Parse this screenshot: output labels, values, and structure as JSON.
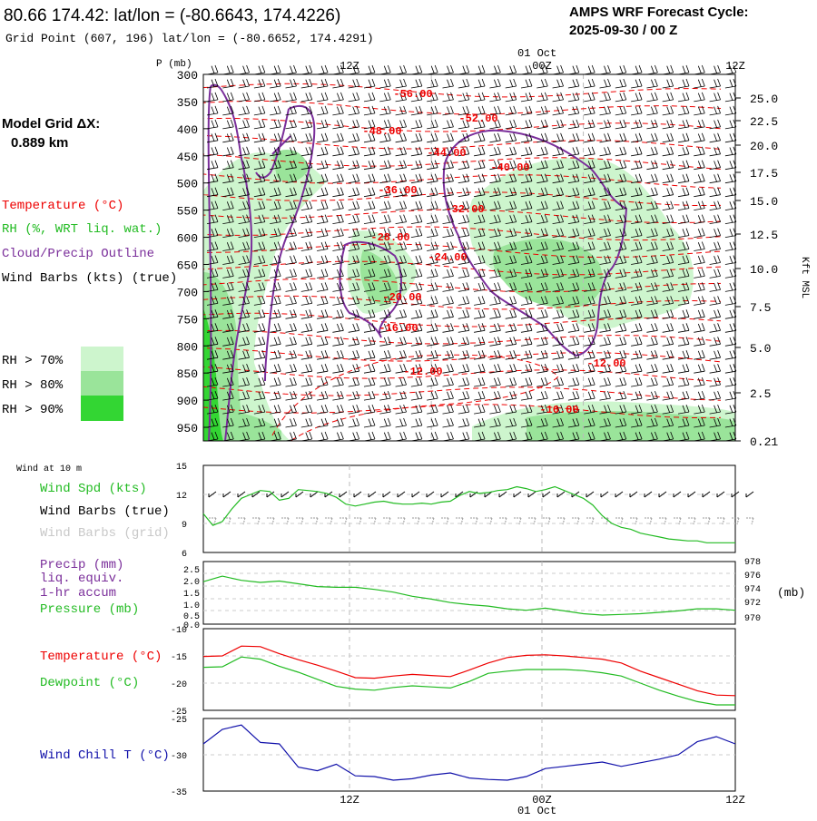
{
  "header": {
    "title": "80.66 174.42:  lat/lon = (-80.6643, 174.4226)",
    "subtitle": "Grid Point (607, 196) lat/lon = (-80.6652, 174.4291)",
    "cycle_label": "AMPS WRF Forecast Cycle:",
    "cycle_value": "2025-09-30 / 00  Z"
  },
  "model_grid": {
    "label": "Model Grid ΔX:",
    "value": "0.889 km"
  },
  "legend": {
    "temperature": "Temperature (°C)",
    "rh": "RH (%, WRT liq. wat.)",
    "cloud": "Cloud/Precip Outline",
    "wind_barbs": "Wind Barbs (kts) (true)",
    "rh70": "RH > 70%",
    "rh80": "RH > 80%",
    "rh90": "RH > 90%"
  },
  "colors": {
    "red": "#ee0000",
    "green": "#22bb22",
    "purple": "#7a2e9a",
    "blue": "#1111aa",
    "rh70": "#cdf5cd",
    "rh80": "#9ae49a",
    "rh90": "#33d633"
  },
  "time_axis": {
    "ticks": [
      "12Z",
      "00Z",
      "12Z"
    ],
    "date_label": "01 Oct"
  },
  "chart_data": [
    {
      "type": "heatmap",
      "name": "time-height cross section",
      "ylabel": "P (mb)",
      "y2label": "Kft MSL",
      "y_ticks": [
        300,
        350,
        400,
        450,
        500,
        550,
        600,
        650,
        700,
        750,
        800,
        850,
        900,
        950
      ],
      "y2_ticks": [
        "25.0",
        "22.5",
        "20.0",
        "17.5",
        "15.0",
        "12.5",
        "10.0",
        "7.5",
        "5.0",
        "2.5",
        "0.21"
      ],
      "temperature_contour_labels": [
        "-56.00",
        "-52.00",
        "-48.00",
        "-44.00",
        "-40.00",
        "-36.00",
        "-32.00",
        "-28.00",
        "-24.00",
        "-20.00",
        "-16.00",
        "-12.00",
        "-12.00",
        "-16.00"
      ],
      "grid": true
    },
    {
      "type": "line",
      "name": "wind at 10 m",
      "label": "Wind at 10 m",
      "legend": [
        "Wind Spd (kts)",
        "Wind Barbs (true)",
        "Wind Barbs (grid)"
      ],
      "y_ticks": [
        15,
        12,
        9,
        6
      ],
      "ylim": [
        6,
        15
      ],
      "x": [
        0,
        3,
        6,
        9,
        12,
        15,
        18,
        21,
        24,
        27,
        30,
        33,
        36,
        39,
        42,
        45,
        48,
        51,
        54,
        57,
        60,
        63,
        66,
        69,
        72,
        75,
        78,
        81,
        84,
        87,
        90,
        93,
        96,
        99,
        102,
        105,
        108,
        111,
        114,
        117,
        120,
        123,
        126,
        129,
        132,
        135,
        138,
        141,
        144,
        147,
        150,
        153,
        156,
        159,
        162,
        165,
        168
      ],
      "series": [
        {
          "values": [
            10.0,
            8.8,
            9.2,
            10.5,
            11.6,
            12.0,
            12.4,
            12.3,
            11.4,
            11.6,
            12.5,
            12.4,
            12.3,
            12.1,
            11.7,
            11.0,
            10.8,
            11.0,
            11.2,
            11.3,
            11.1,
            11.0,
            11.0,
            11.1,
            11.0,
            11.2,
            11.3,
            11.9,
            12.3,
            12.1,
            12.2,
            12.4,
            12.5,
            12.8,
            12.6,
            12.3,
            12.5,
            12.8,
            12.4,
            12.0,
            11.6,
            10.9,
            9.8,
            9.0,
            8.6,
            8.4,
            8.0,
            7.8,
            7.6,
            7.4,
            7.3,
            7.2,
            7.2,
            7.0,
            7.0,
            7.0,
            7.0
          ]
        }
      ]
    },
    {
      "type": "line",
      "name": "precip and pressure",
      "legend": [
        "Precip (mm)",
        "liq. equiv.",
        "1-hr accum",
        "Pressure (mb)"
      ],
      "y_ticks": [
        "2.5",
        "2.0",
        "1.5",
        "1.0",
        "0.5",
        "0.0"
      ],
      "y2_ticks": [
        "978",
        "976",
        "974",
        "972",
        "970"
      ],
      "y2label": "(mb)",
      "y2lim": [
        970,
        979
      ],
      "x": [
        0,
        6,
        12,
        18,
        24,
        30,
        36,
        42,
        48,
        54,
        60,
        66,
        72,
        78,
        84,
        90,
        96,
        102,
        108,
        114,
        120,
        126,
        132,
        138,
        144,
        150,
        156,
        162,
        168
      ],
      "series": [
        {
          "name": "Pressure (mb)",
          "values": [
            976.1,
            976.9,
            976.3,
            976.0,
            976.2,
            975.8,
            975.4,
            975.3,
            975.3,
            975.0,
            974.6,
            974.0,
            973.6,
            973.1,
            972.8,
            972.6,
            972.2,
            972.0,
            972.3,
            971.9,
            971.5,
            971.3,
            971.4,
            971.5,
            971.7,
            971.9,
            972.2,
            972.2,
            972.0
          ]
        }
      ]
    },
    {
      "type": "line",
      "name": "temperature and dewpoint",
      "legend": [
        "Temperature (°C)",
        "Dewpoint (°C)"
      ],
      "y_ticks": [
        -10,
        -15,
        -20,
        -25
      ],
      "ylim": [
        -25,
        -10
      ],
      "x": [
        0,
        6,
        12,
        18,
        24,
        30,
        36,
        42,
        48,
        54,
        60,
        66,
        72,
        78,
        84,
        90,
        96,
        102,
        108,
        114,
        120,
        126,
        132,
        138,
        144,
        150,
        156,
        162,
        168
      ],
      "series": [
        {
          "name": "Temperature (°C)",
          "values": [
            -15.1,
            -15.0,
            -13.2,
            -13.3,
            -14.6,
            -15.7,
            -16.7,
            -17.8,
            -19.0,
            -19.1,
            -18.7,
            -18.4,
            -18.6,
            -18.8,
            -17.6,
            -16.3,
            -15.3,
            -14.9,
            -14.8,
            -15.0,
            -15.3,
            -15.6,
            -16.3,
            -17.8,
            -19.0,
            -20.2,
            -21.4,
            -22.2,
            -22.3
          ]
        },
        {
          "name": "Dewpoint (°C)",
          "values": [
            -17.1,
            -17.0,
            -15.2,
            -15.6,
            -16.9,
            -18.0,
            -19.3,
            -20.6,
            -21.1,
            -21.3,
            -20.8,
            -20.5,
            -20.7,
            -20.9,
            -19.7,
            -18.2,
            -17.8,
            -17.5,
            -17.5,
            -17.5,
            -17.7,
            -18.1,
            -18.7,
            -20.0,
            -21.3,
            -22.4,
            -23.4,
            -24.0,
            -24.0
          ]
        }
      ]
    },
    {
      "type": "line",
      "name": "wind chill",
      "legend": [
        "Wind Chill T (°C)"
      ],
      "y_ticks": [
        -25,
        -30,
        -35
      ],
      "ylim": [
        -35,
        -25
      ],
      "x": [
        0,
        6,
        12,
        18,
        24,
        30,
        36,
        42,
        48,
        54,
        60,
        66,
        72,
        78,
        84,
        90,
        96,
        102,
        108,
        114,
        120,
        126,
        132,
        138,
        144,
        150,
        156,
        162,
        168
      ],
      "series": [
        {
          "name": "Wind Chill T (°C)",
          "values": [
            -28.5,
            -26.5,
            -25.9,
            -28.3,
            -28.5,
            -31.7,
            -32.2,
            -31.3,
            -32.9,
            -33.0,
            -33.5,
            -33.3,
            -32.8,
            -32.5,
            -33.2,
            -33.4,
            -33.5,
            -33.0,
            -31.9,
            -31.6,
            -31.3,
            -31.0,
            -31.6,
            -31.1,
            -30.6,
            -30.0,
            -28.2,
            -27.5,
            -28.5
          ]
        }
      ]
    }
  ]
}
